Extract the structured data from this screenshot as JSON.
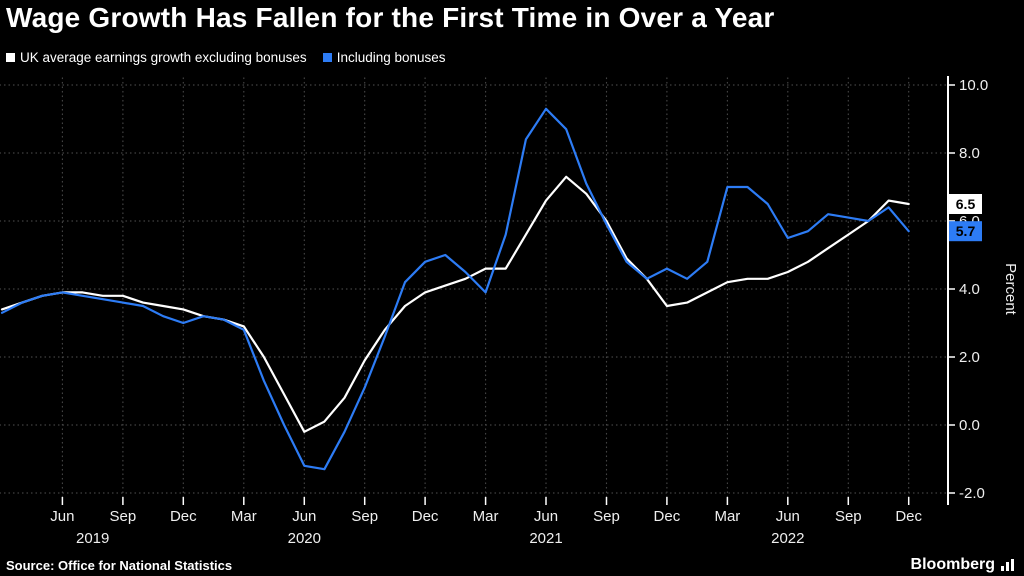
{
  "title": "Wage Growth Has Fallen for the First Time in Over a Year",
  "legend": {
    "items": [
      {
        "label": "UK average earnings growth excluding bonuses",
        "color": "#ffffff"
      },
      {
        "label": "Including bonuses",
        "color": "#2d7cf5"
      }
    ]
  },
  "source": "Source: Office for National Statistics",
  "brand": {
    "name": "Bloomberg"
  },
  "colors": {
    "background": "#000000",
    "gridline": "#454545",
    "axis": "#ffffff",
    "accent_blue": "#2d7cf5"
  },
  "chart_data": {
    "type": "line",
    "title": "Wage Growth Has Fallen for the First Time in Over a Year",
    "y_axis_label": "Percent",
    "y_min": -2,
    "y_max": 10,
    "grid": true,
    "legend_position": "top-left",
    "x_frequency": "monthly",
    "x": [
      "Mar 2019",
      "Apr 2019",
      "May 2019",
      "Jun 2019",
      "Jul 2019",
      "Aug 2019",
      "Sep 2019",
      "Oct 2019",
      "Nov 2019",
      "Dec 2019",
      "Jan 2020",
      "Feb 2020",
      "Mar 2020",
      "Apr 2020",
      "May 2020",
      "Jun 2020",
      "Jul 2020",
      "Aug 2020",
      "Sep 2020",
      "Oct 2020",
      "Nov 2020",
      "Dec 2020",
      "Jan 2021",
      "Feb 2021",
      "Mar 2021",
      "Apr 2021",
      "May 2021",
      "Jun 2021",
      "Jul 2021",
      "Aug 2021",
      "Sep 2021",
      "Oct 2021",
      "Nov 2021",
      "Dec 2021",
      "Jan 2022",
      "Feb 2022",
      "Mar 2022",
      "Apr 2022",
      "May 2022",
      "Jun 2022",
      "Jul 2022",
      "Aug 2022",
      "Sep 2022",
      "Oct 2022",
      "Nov 2022",
      "Dec 2022"
    ],
    "y_ticks": [
      {
        "label": "10.0",
        "value": 10
      },
      {
        "label": "8.0",
        "value": 8
      },
      {
        "label": "6.0",
        "value": 6
      },
      {
        "label": "4.0",
        "value": 4
      },
      {
        "label": "2.0",
        "value": 2
      },
      {
        "label": "0.0",
        "value": 0
      },
      {
        "label": "-2.0",
        "value": -2
      }
    ],
    "x_ticks": [
      {
        "label": "Jun",
        "i": 3
      },
      {
        "label": "Sep",
        "i": 6
      },
      {
        "label": "Dec",
        "i": 9
      },
      {
        "label": "Mar",
        "i": 12
      },
      {
        "label": "Jun",
        "i": 15
      },
      {
        "label": "Sep",
        "i": 18
      },
      {
        "label": "Dec",
        "i": 21
      },
      {
        "label": "Mar",
        "i": 24
      },
      {
        "label": "Jun",
        "i": 27
      },
      {
        "label": "Sep",
        "i": 30
      },
      {
        "label": "Dec",
        "i": 33
      },
      {
        "label": "Mar",
        "i": 36
      },
      {
        "label": "Jun",
        "i": 39
      },
      {
        "label": "Sep",
        "i": 42
      },
      {
        "label": "Dec",
        "i": 45
      }
    ],
    "year_labels": [
      {
        "label": "2019",
        "i": 4.5
      },
      {
        "label": "2020",
        "i": 15
      },
      {
        "label": "2021",
        "i": 27
      },
      {
        "label": "2022",
        "i": 39
      }
    ],
    "series": [
      {
        "name": "UK average earnings growth excluding bonuses",
        "color": "#ffffff",
        "values": [
          3.4,
          3.6,
          3.8,
          3.9,
          3.9,
          3.8,
          3.8,
          3.6,
          3.5,
          3.4,
          3.2,
          3.1,
          2.9,
          2.0,
          0.9,
          -0.2,
          0.1,
          0.8,
          1.9,
          2.8,
          3.5,
          3.9,
          4.1,
          4.3,
          4.6,
          4.6,
          5.6,
          6.6,
          7.3,
          6.8,
          6.0,
          4.9,
          4.3,
          3.5,
          3.6,
          3.9,
          4.2,
          4.3,
          4.3,
          4.5,
          4.8,
          5.2,
          5.6,
          6.0,
          6.6,
          6.5
        ]
      },
      {
        "name": "Including bonuses",
        "color": "#2d7cf5",
        "values": [
          3.3,
          3.6,
          3.8,
          3.9,
          3.8,
          3.7,
          3.6,
          3.5,
          3.2,
          3.0,
          3.2,
          3.1,
          2.8,
          1.3,
          0.0,
          -1.2,
          -1.3,
          -0.2,
          1.1,
          2.6,
          4.2,
          4.8,
          5.0,
          4.5,
          3.9,
          5.6,
          8.4,
          9.3,
          8.7,
          7.1,
          5.9,
          4.8,
          4.3,
          4.6,
          4.3,
          4.8,
          7.0,
          7.0,
          6.5,
          5.5,
          5.7,
          6.2,
          6.1,
          6.0,
          6.4,
          5.7
        ]
      }
    ],
    "end_labels": [
      {
        "text": "6.5",
        "value": 6.5,
        "bg": "#ffffff",
        "fg": "#000000"
      },
      {
        "text": "5.7",
        "value": 5.7,
        "bg": "#2d7cf5",
        "fg": "#000000"
      }
    ]
  }
}
